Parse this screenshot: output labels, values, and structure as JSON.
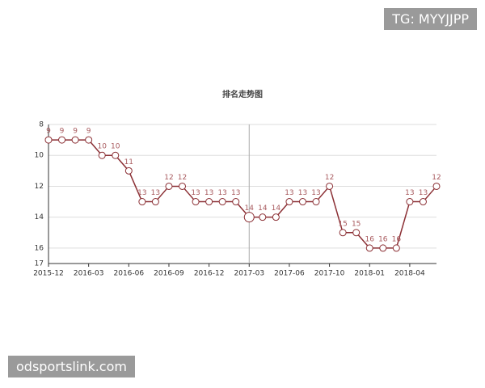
{
  "chart_data": {
    "type": "line",
    "title": "排名走势图",
    "categories": [
      "2015-12",
      null,
      null,
      "2016-03",
      null,
      null,
      "2016-06",
      null,
      null,
      "2016-09",
      null,
      null,
      "2016-12",
      null,
      null,
      "2017-03",
      null,
      null,
      "2017-06",
      null,
      null,
      "2017-10",
      null,
      null,
      "2018-01",
      null,
      null,
      "2018-04",
      null,
      null
    ],
    "values": [
      9,
      9,
      9,
      9,
      10,
      10,
      11,
      13,
      13,
      12,
      12,
      13,
      13,
      13,
      13,
      14,
      14,
      14,
      13,
      13,
      13,
      12,
      15,
      15,
      16,
      16,
      16,
      13,
      13,
      12
    ],
    "color": "#8b2f34",
    "label_color": "#a85a5e",
    "ylim": [
      8,
      17
    ],
    "yticks": [
      8,
      10,
      12,
      14,
      16,
      17
    ],
    "y_inverted": true,
    "grid": true,
    "highlight_index": 15
  },
  "watermarks": [
    "TG: MYYJJPP",
    "odsportslink.com"
  ]
}
